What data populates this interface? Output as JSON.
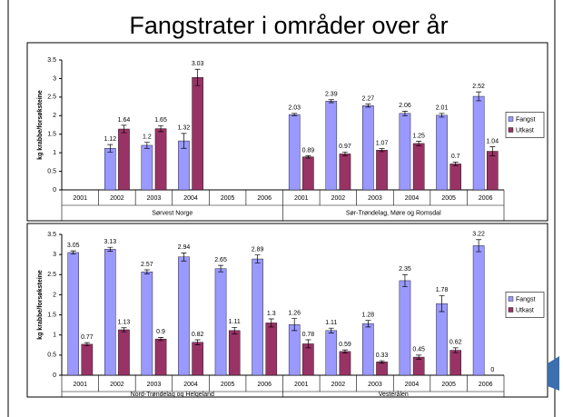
{
  "title": "Fangstrater i områder over år",
  "chart_data": [
    {
      "type": "bar",
      "ylabel": "kg krabbe/forsøksteine",
      "categories": [
        "2001",
        "2002",
        "2003",
        "2004",
        "2005",
        "2006",
        "2001",
        "2002",
        "2003",
        "2004",
        "2005",
        "2006"
      ],
      "groups": [
        "Sørvest Norge",
        "Sør-Trøndelag, Møre og Romsdal"
      ],
      "ylim": [
        0,
        3.5
      ],
      "yticks": [
        0,
        0.5,
        1,
        1.5,
        2,
        2.5,
        3,
        3.5
      ],
      "grid": false,
      "legend": "right",
      "series": [
        {
          "name": "Fangst",
          "color": "#9999ff",
          "values": [
            null,
            1.12,
            1.2,
            1.32,
            null,
            null,
            2.03,
            2.39,
            2.27,
            2.06,
            2.01,
            2.52
          ],
          "errors": [
            null,
            0.1,
            0.08,
            0.2,
            null,
            null,
            0.03,
            0.04,
            0.04,
            0.06,
            0.05,
            0.12
          ]
        },
        {
          "name": "Utkast",
          "color": "#993366",
          "values": [
            null,
            1.64,
            1.65,
            3.03,
            null,
            null,
            0.89,
            0.97,
            1.07,
            1.25,
            0.7,
            1.04
          ],
          "errors": [
            null,
            0.1,
            0.08,
            0.22,
            null,
            null,
            0.03,
            0.05,
            0.04,
            0.06,
            0.05,
            0.12
          ]
        }
      ]
    },
    {
      "type": "bar",
      "ylabel": "kg krabbe/forsøksteine",
      "categories": [
        "2001",
        "2002",
        "2003",
        "2004",
        "2005",
        "2006",
        "2001",
        "2002",
        "2003",
        "2004",
        "2005",
        "2006"
      ],
      "groups": [
        "Nord-Trøndelag og Helgeland",
        "Vesterålen"
      ],
      "ylim": [
        0,
        3.5
      ],
      "yticks": [
        0,
        0.5,
        1,
        1.5,
        2,
        2.5,
        3,
        3.5
      ],
      "grid": false,
      "legend": "right",
      "series": [
        {
          "name": "Fangst",
          "color": "#9999ff",
          "values": [
            3.05,
            3.13,
            2.57,
            2.94,
            2.65,
            2.89,
            1.26,
            1.11,
            1.28,
            2.35,
            1.78,
            3.22
          ],
          "errors": [
            0.04,
            0.05,
            0.05,
            0.1,
            0.08,
            0.1,
            0.15,
            0.06,
            0.08,
            0.15,
            0.2,
            0.15
          ]
        },
        {
          "name": "Utkast",
          "color": "#993366",
          "values": [
            0.77,
            1.13,
            0.9,
            0.82,
            1.11,
            1.3,
            0.78,
            0.59,
            0.33,
            0.45,
            0.62,
            0
          ],
          "errors": [
            0.04,
            0.05,
            0.04,
            0.06,
            0.08,
            0.1,
            0.1,
            0.04,
            0.03,
            0.05,
            0.06,
            0
          ]
        }
      ]
    }
  ]
}
